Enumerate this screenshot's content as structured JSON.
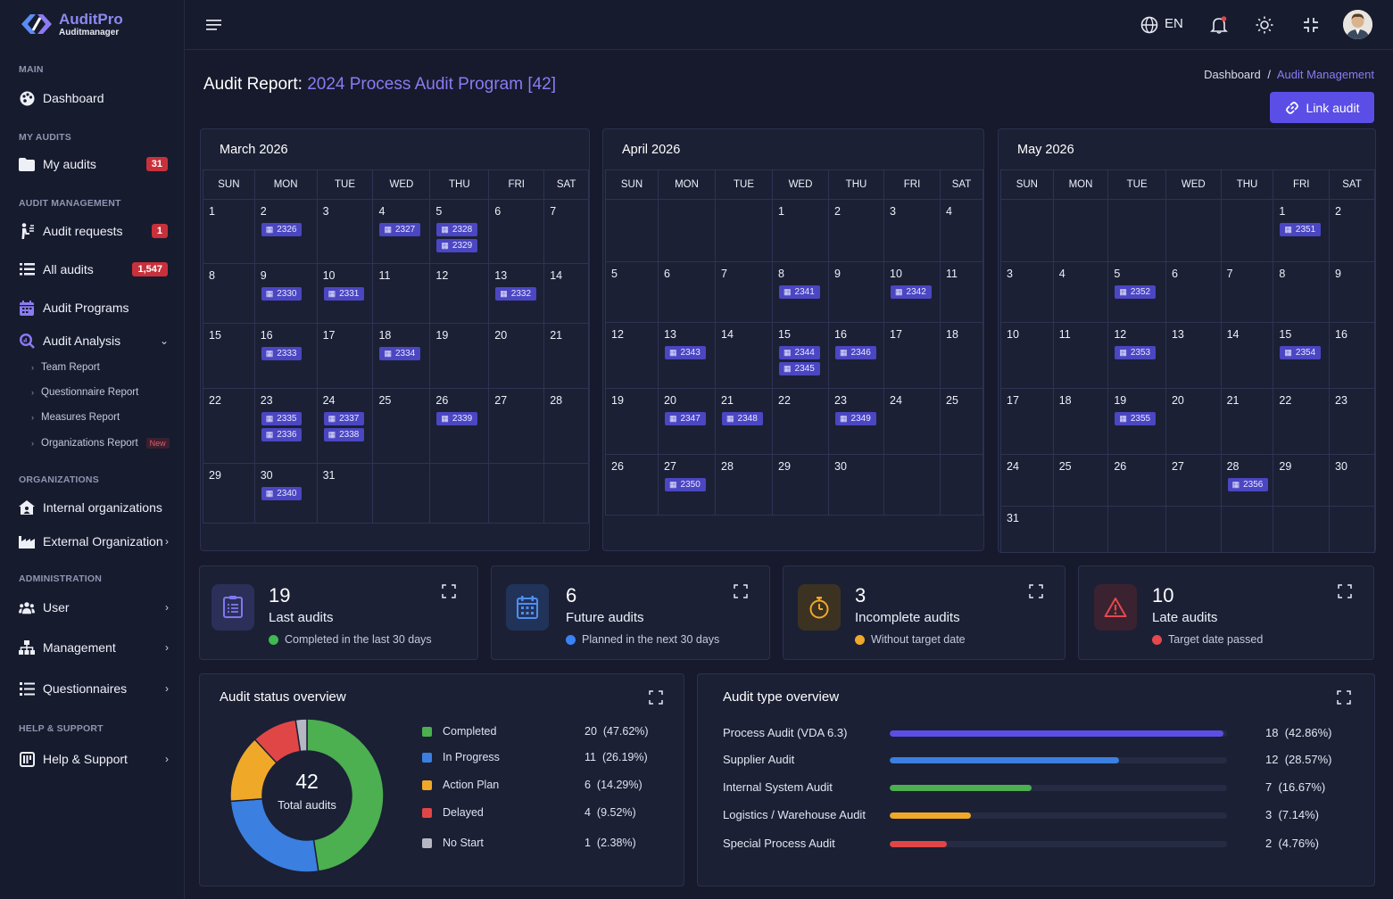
{
  "brand": {
    "name": "AuditPro",
    "sub": "Auditmanager"
  },
  "sidebar": {
    "sections": {
      "main": "MAIN",
      "my_audits": "MY AUDITS",
      "audit_management": "AUDIT MANAGEMENT",
      "organizations": "ORGANIZATIONS",
      "administration": "ADMINISTRATION",
      "help": "HELP & SUPPORT"
    },
    "items": {
      "dashboard": "Dashboard",
      "my_audits": {
        "label": "My audits",
        "badge": "31"
      },
      "audit_requests": {
        "label": "Audit requests",
        "badge": "1"
      },
      "all_audits": {
        "label": "All audits",
        "badge": "1,547"
      },
      "audit_programs": "Audit Programs",
      "audit_analysis": "Audit Analysis",
      "team_report": "Team Report",
      "questionnaire_report": "Questionnaire Report",
      "measures_report": "Measures Report",
      "organizations_report": {
        "label": "Organizations Report",
        "badge": "New"
      },
      "internal_orgs": "Internal organizations",
      "external_org": "External Organization",
      "user": "User",
      "management": "Management",
      "questionnaires": "Questionnaires",
      "help_support": "Help & Support"
    }
  },
  "topbar": {
    "language": "EN"
  },
  "page": {
    "title_prefix": "Audit Report:",
    "title_highlight": "2024 Process Audit Program [42]",
    "breadcrumb": {
      "home": "Dashboard",
      "sep": "/",
      "current": "Audit Management"
    },
    "link_audit_button": "Link audit"
  },
  "weekdays": [
    "SUN",
    "MON",
    "TUE",
    "WED",
    "THU",
    "FRI",
    "SAT"
  ],
  "calendars": [
    {
      "title": "March 2026",
      "weeks": [
        [
          {
            "d": "1"
          },
          {
            "d": "2",
            "e": [
              "2326"
            ]
          },
          {
            "d": "3"
          },
          {
            "d": "4",
            "e": [
              "2327"
            ]
          },
          {
            "d": "5",
            "e": [
              "2328",
              "2329"
            ]
          },
          {
            "d": "6"
          },
          {
            "d": "7"
          }
        ],
        [
          {
            "d": "8"
          },
          {
            "d": "9",
            "e": [
              "2330"
            ]
          },
          {
            "d": "10",
            "e": [
              "2331"
            ]
          },
          {
            "d": "11"
          },
          {
            "d": "12"
          },
          {
            "d": "13",
            "e": [
              "2332"
            ]
          },
          {
            "d": "14"
          }
        ],
        [
          {
            "d": "15"
          },
          {
            "d": "16",
            "e": [
              "2333"
            ]
          },
          {
            "d": "17"
          },
          {
            "d": "18",
            "e": [
              "2334"
            ]
          },
          {
            "d": "19"
          },
          {
            "d": "20"
          },
          {
            "d": "21"
          }
        ],
        [
          {
            "d": "22"
          },
          {
            "d": "23",
            "e": [
              "2335",
              "2336"
            ]
          },
          {
            "d": "24",
            "e": [
              "2337",
              "2338"
            ]
          },
          {
            "d": "25"
          },
          {
            "d": "26",
            "e": [
              "2339"
            ]
          },
          {
            "d": "27"
          },
          {
            "d": "28"
          }
        ],
        [
          {
            "d": "29"
          },
          {
            "d": "30",
            "e": [
              "2340"
            ]
          },
          {
            "d": "31"
          },
          {
            "d": ""
          },
          {
            "d": ""
          },
          {
            "d": ""
          },
          {
            "d": ""
          }
        ]
      ]
    },
    {
      "title": "April 2026",
      "weeks": [
        [
          {
            "d": ""
          },
          {
            "d": ""
          },
          {
            "d": ""
          },
          {
            "d": "1"
          },
          {
            "d": "2"
          },
          {
            "d": "3"
          },
          {
            "d": "4"
          }
        ],
        [
          {
            "d": "5"
          },
          {
            "d": "6"
          },
          {
            "d": "7"
          },
          {
            "d": "8",
            "e": [
              "2341"
            ]
          },
          {
            "d": "9"
          },
          {
            "d": "10",
            "e": [
              "2342"
            ]
          },
          {
            "d": "11"
          }
        ],
        [
          {
            "d": "12"
          },
          {
            "d": "13",
            "e": [
              "2343"
            ]
          },
          {
            "d": "14"
          },
          {
            "d": "15",
            "e": [
              "2344",
              "2345"
            ]
          },
          {
            "d": "16",
            "e": [
              "2346"
            ]
          },
          {
            "d": "17"
          },
          {
            "d": "18"
          }
        ],
        [
          {
            "d": "19"
          },
          {
            "d": "20",
            "e": [
              "2347"
            ]
          },
          {
            "d": "21",
            "e": [
              "2348"
            ]
          },
          {
            "d": "22"
          },
          {
            "d": "23",
            "e": [
              "2349"
            ]
          },
          {
            "d": "24"
          },
          {
            "d": "25"
          }
        ],
        [
          {
            "d": "26"
          },
          {
            "d": "27",
            "e": [
              "2350"
            ]
          },
          {
            "d": "28"
          },
          {
            "d": "29"
          },
          {
            "d": "30"
          },
          {
            "d": ""
          },
          {
            "d": ""
          }
        ]
      ]
    },
    {
      "title": "May 2026",
      "weeks": [
        [
          {
            "d": ""
          },
          {
            "d": ""
          },
          {
            "d": ""
          },
          {
            "d": ""
          },
          {
            "d": ""
          },
          {
            "d": "1",
            "e": [
              "2351"
            ]
          },
          {
            "d": "2"
          }
        ],
        [
          {
            "d": "3"
          },
          {
            "d": "4"
          },
          {
            "d": "5",
            "e": [
              "2352"
            ]
          },
          {
            "d": "6"
          },
          {
            "d": "7"
          },
          {
            "d": "8"
          },
          {
            "d": "9"
          }
        ],
        [
          {
            "d": "10"
          },
          {
            "d": "11"
          },
          {
            "d": "12",
            "e": [
              "2353"
            ]
          },
          {
            "d": "13"
          },
          {
            "d": "14"
          },
          {
            "d": "15",
            "e": [
              "2354"
            ]
          },
          {
            "d": "16"
          }
        ],
        [
          {
            "d": "17"
          },
          {
            "d": "18"
          },
          {
            "d": "19",
            "e": [
              "2355"
            ]
          },
          {
            "d": "20"
          },
          {
            "d": "21"
          },
          {
            "d": "22"
          },
          {
            "d": "23"
          }
        ],
        [
          {
            "d": "24"
          },
          {
            "d": "25"
          },
          {
            "d": "26"
          },
          {
            "d": "27"
          },
          {
            "d": "28",
            "e": [
              "2356"
            ]
          },
          {
            "d": "29"
          },
          {
            "d": "30"
          }
        ],
        [
          {
            "d": "31"
          },
          {
            "d": ""
          },
          {
            "d": ""
          },
          {
            "d": ""
          },
          {
            "d": ""
          },
          {
            "d": ""
          },
          {
            "d": ""
          }
        ]
      ]
    }
  ],
  "stats": [
    {
      "num": "19",
      "label": "Last audits",
      "sub": "Completed in the last 30 days",
      "color": "#3fb950",
      "icon": "clipboard-list-icon"
    },
    {
      "num": "6",
      "label": "Future audits",
      "sub": "Planned in the next 30 days",
      "color": "#3b82f6",
      "icon": "calendar-icon"
    },
    {
      "num": "3",
      "label": "Incomplete audits",
      "sub": "Without target date",
      "color": "#f0a829",
      "icon": "stopwatch-icon"
    },
    {
      "num": "10",
      "label": "Late audits",
      "sub": "Target date passed",
      "color": "#e5484d",
      "icon": "warning-icon"
    }
  ],
  "status_overview": {
    "title": "Audit status overview",
    "total": "42",
    "total_label": "Total audits",
    "items": [
      {
        "name": "Completed",
        "value": "20",
        "pct": "(47.62%)",
        "color": "#4caf50"
      },
      {
        "name": "In Progress",
        "value": "11",
        "pct": "(26.19%)",
        "color": "#3b7fe0"
      },
      {
        "name": "Action Plan",
        "value": "6",
        "pct": "(14.29%)",
        "color": "#f0a829"
      },
      {
        "name": "Delayed",
        "value": "4",
        "pct": "(9.52%)",
        "color": "#e04646"
      },
      {
        "name": "No Start",
        "value": "1",
        "pct": "(2.38%)",
        "color": "#b5b8c4"
      }
    ]
  },
  "type_overview": {
    "title": "Audit type overview",
    "items": [
      {
        "name": "Process Audit (VDA 6.3)",
        "value": "18",
        "pct": "(42.86%)",
        "fraction": 0.99,
        "color": "#5b4ee6"
      },
      {
        "name": "Supplier Audit",
        "value": "12",
        "pct": "(28.57%)",
        "fraction": 0.68,
        "color": "#3b7fe0"
      },
      {
        "name": "Internal System Audit",
        "value": "7",
        "pct": "(16.67%)",
        "fraction": 0.42,
        "color": "#4caf50"
      },
      {
        "name": "Logistics / Warehouse Audit",
        "value": "3",
        "pct": "(7.14%)",
        "fraction": 0.24,
        "color": "#f0a829"
      },
      {
        "name": "Special Process Audit",
        "value": "2",
        "pct": "(4.76%)",
        "fraction": 0.17,
        "color": "#e04646"
      }
    ]
  }
}
